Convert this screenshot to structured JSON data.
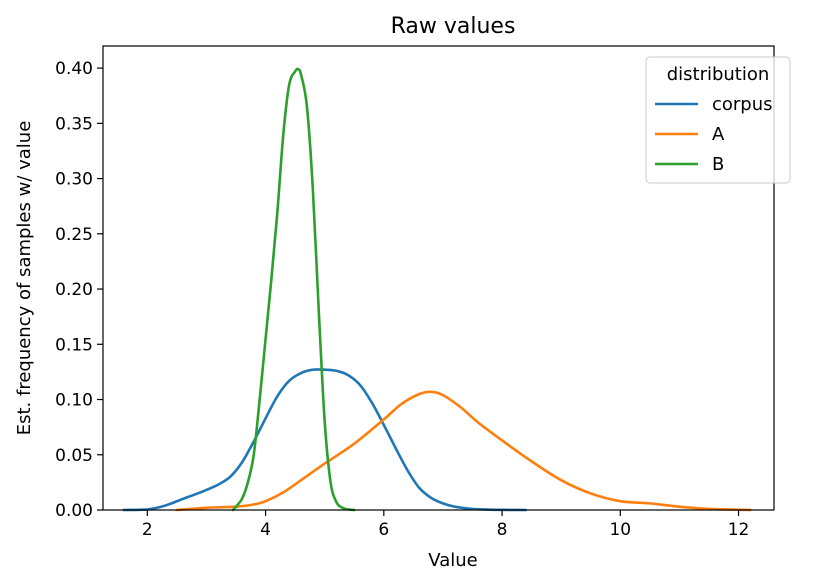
{
  "chart_data": {
    "type": "line",
    "title": "Raw values",
    "xlabel": "Value",
    "ylabel": "Est. frequency of samples w/ value",
    "xlim": [
      1.25,
      12.6
    ],
    "ylim": [
      0,
      0.42
    ],
    "xticks": [
      2,
      4,
      6,
      8,
      10,
      12
    ],
    "yticks": [
      0.0,
      0.05,
      0.1,
      0.15,
      0.2,
      0.25,
      0.3,
      0.35,
      0.4
    ],
    "xtick_labels": [
      "2",
      "4",
      "6",
      "8",
      "10",
      "12"
    ],
    "ytick_labels": [
      "0.00",
      "0.05",
      "0.10",
      "0.15",
      "0.20",
      "0.25",
      "0.30",
      "0.35",
      "0.40"
    ],
    "grid": false,
    "legend": {
      "title": "distribution",
      "placement": "upper right",
      "entries": [
        "corpus",
        "A",
        "B"
      ]
    },
    "series": [
      {
        "name": "corpus",
        "color": "#1f77b4",
        "x": [
          1.6,
          2.0,
          2.3,
          2.6,
          2.9,
          3.2,
          3.4,
          3.6,
          3.8,
          4.0,
          4.2,
          4.4,
          4.6,
          4.8,
          5.0,
          5.2,
          5.4,
          5.6,
          5.8,
          6.0,
          6.2,
          6.4,
          6.6,
          6.8,
          7.0,
          7.2,
          7.5,
          7.8,
          8.1,
          8.4
        ],
        "y": [
          0.0,
          0.0005,
          0.004,
          0.01,
          0.016,
          0.023,
          0.03,
          0.043,
          0.062,
          0.083,
          0.103,
          0.117,
          0.124,
          0.127,
          0.127,
          0.126,
          0.122,
          0.113,
          0.097,
          0.077,
          0.056,
          0.036,
          0.02,
          0.011,
          0.006,
          0.003,
          0.001,
          0.0003,
          0.0001,
          0.0
        ]
      },
      {
        "name": "A",
        "color": "#ff7f0e",
        "x": [
          2.5,
          3.0,
          3.5,
          3.8,
          4.0,
          4.3,
          4.6,
          5.0,
          5.5,
          6.0,
          6.3,
          6.6,
          6.8,
          7.0,
          7.3,
          7.6,
          8.0,
          8.5,
          9.0,
          9.5,
          10.0,
          10.5,
          11.0,
          11.5,
          12.2
        ],
        "y": [
          0.0,
          0.002,
          0.003,
          0.005,
          0.008,
          0.016,
          0.027,
          0.042,
          0.06,
          0.082,
          0.096,
          0.105,
          0.107,
          0.104,
          0.093,
          0.079,
          0.063,
          0.044,
          0.027,
          0.015,
          0.008,
          0.006,
          0.003,
          0.001,
          0.0
        ]
      },
      {
        "name": "B",
        "color": "#2ca02c",
        "x": [
          3.45,
          3.6,
          3.7,
          3.8,
          3.9,
          4.0,
          4.1,
          4.2,
          4.3,
          4.4,
          4.5,
          4.55,
          4.6,
          4.7,
          4.8,
          4.9,
          5.0,
          5.1,
          5.2,
          5.3,
          5.4,
          5.5
        ],
        "y": [
          0.0,
          0.01,
          0.025,
          0.05,
          0.1,
          0.155,
          0.21,
          0.27,
          0.34,
          0.385,
          0.397,
          0.399,
          0.394,
          0.365,
          0.29,
          0.18,
          0.08,
          0.025,
          0.007,
          0.002,
          0.0005,
          0.0
        ]
      }
    ]
  }
}
